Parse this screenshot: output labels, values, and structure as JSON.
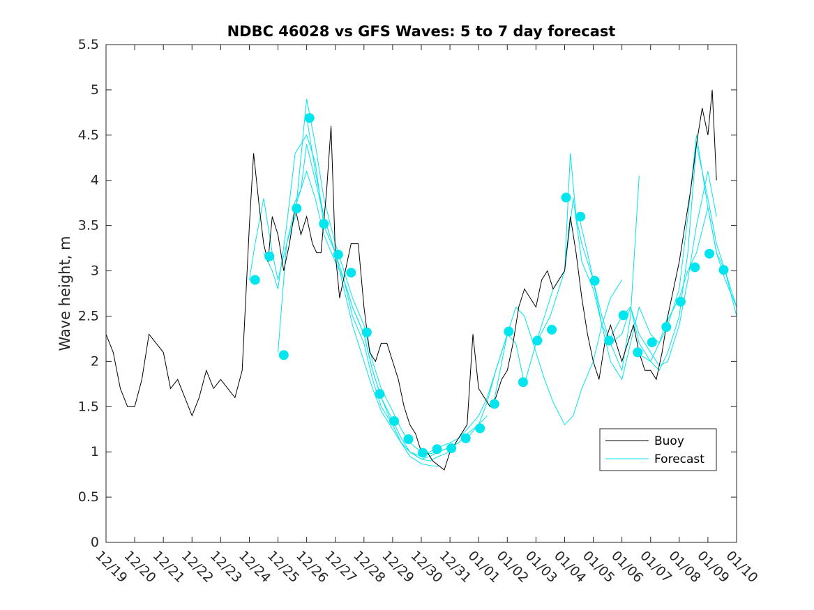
{
  "colors": {
    "buoy": "#000000",
    "forecast": "#00e5ee",
    "axis": "#262626",
    "background": "#ffffff"
  },
  "chart_data": {
    "type": "line",
    "title": "NDBC 46028 vs GFS Waves: 5 to 7 day forecast",
    "xlabel": "",
    "ylabel": "Wave height, m",
    "xlim": [
      0,
      22
    ],
    "ylim": [
      0,
      5.5
    ],
    "yticks": [
      0,
      0.5,
      1,
      1.5,
      2,
      2.5,
      3,
      3.5,
      4,
      4.5,
      5,
      5.5
    ],
    "ytick_labels": [
      "0",
      "0.5",
      "1",
      "1.5",
      "2",
      "2.5",
      "3",
      "3.5",
      "4",
      "4.5",
      "5",
      "5.5"
    ],
    "xticks": [
      0,
      1,
      2,
      3,
      4,
      5,
      6,
      7,
      8,
      9,
      10,
      11,
      12,
      13,
      14,
      15,
      16,
      17,
      18,
      19,
      20,
      21,
      22
    ],
    "xtick_labels": [
      "12/19",
      "12/20",
      "12/21",
      "12/22",
      "12/23",
      "12/24",
      "12/25",
      "12/26",
      "12/27",
      "12/28",
      "12/29",
      "12/30",
      "12/31",
      "01/01",
      "01/02",
      "01/03",
      "01/04",
      "01/05",
      "01/06",
      "01/07",
      "01/08",
      "01/09",
      "01/10"
    ],
    "legend": {
      "placement": "bottom-right",
      "entries": [
        "Buoy",
        "Forecast"
      ]
    },
    "series": [
      {
        "name": "Buoy",
        "color": "#000000",
        "note": "x in days since 12/19 00:00",
        "x": [
          0,
          0.25,
          0.5,
          0.75,
          1.0,
          1.25,
          1.5,
          1.75,
          2.0,
          2.25,
          2.5,
          2.75,
          3.0,
          3.25,
          3.5,
          3.75,
          4.0,
          4.25,
          4.5,
          4.75,
          5.0,
          5.15,
          5.35,
          5.5,
          5.65,
          5.8,
          6.0,
          6.2,
          6.4,
          6.6,
          6.8,
          7.0,
          7.2,
          7.35,
          7.5,
          7.7,
          7.85,
          8.0,
          8.15,
          8.35,
          8.55,
          8.8,
          9.0,
          9.2,
          9.4,
          9.6,
          9.8,
          10.0,
          10.2,
          10.4,
          10.6,
          10.8,
          11.0,
          11.2,
          11.4,
          11.6,
          11.8,
          12.0,
          12.2,
          12.4,
          12.6,
          12.8,
          13.0,
          13.2,
          13.4,
          13.6,
          13.8,
          14.0,
          14.2,
          14.4,
          14.6,
          14.8,
          15.0,
          15.2,
          15.4,
          15.6,
          15.8,
          16.0,
          16.2,
          16.4,
          16.6,
          16.8,
          17.0,
          17.2,
          17.4,
          17.6,
          17.8,
          18.0,
          18.2,
          18.4,
          18.6,
          18.8,
          19.0,
          19.2,
          19.4,
          19.6,
          19.8,
          20.0,
          20.2,
          20.4,
          20.6,
          20.8,
          21.0,
          21.15,
          21.3
        ],
        "y": [
          2.3,
          2.1,
          1.7,
          1.5,
          1.5,
          1.8,
          2.3,
          2.2,
          2.1,
          1.7,
          1.8,
          1.6,
          1.4,
          1.6,
          1.9,
          1.7,
          1.8,
          1.7,
          1.6,
          1.9,
          3.5,
          4.3,
          3.7,
          3.3,
          3.1,
          3.6,
          3.4,
          3.0,
          3.3,
          3.7,
          3.4,
          3.6,
          3.3,
          3.2,
          3.2,
          3.9,
          4.6,
          3.2,
          2.7,
          3.0,
          3.3,
          3.3,
          2.6,
          2.1,
          2.0,
          2.2,
          2.2,
          2.0,
          1.8,
          1.5,
          1.3,
          1.2,
          1.0,
          1.0,
          0.9,
          0.85,
          0.8,
          1.0,
          1.1,
          1.2,
          1.3,
          2.3,
          1.7,
          1.6,
          1.5,
          1.6,
          1.8,
          1.9,
          2.2,
          2.6,
          2.8,
          2.7,
          2.6,
          2.9,
          3.0,
          2.8,
          2.9,
          3.0,
          3.6,
          3.2,
          2.7,
          2.3,
          2.0,
          1.8,
          2.2,
          2.4,
          2.2,
          2.0,
          2.2,
          2.4,
          2.1,
          1.9,
          1.9,
          1.8,
          2.1,
          2.5,
          2.8,
          3.1,
          3.5,
          3.9,
          4.4,
          4.8,
          4.5,
          5.0,
          4.0
        ]
      },
      {
        "name": "Forecast",
        "color": "#00e5ee",
        "runs": [
          {
            "x": [
              5.0,
              5.2,
              5.5,
              5.8,
              6.0,
              6.3,
              6.6,
              7.0,
              7.3,
              7.6,
              8.0,
              8.3,
              8.6,
              9.0,
              9.3,
              9.6,
              10.0,
              10.3,
              10.6,
              11.0,
              11.3,
              11.6
            ],
            "y": [
              2.9,
              3.3,
              3.8,
              3.2,
              2.9,
              3.3,
              3.7,
              4.1,
              3.8,
              3.4,
              3.1,
              2.9,
              2.5,
              2.2,
              1.8,
              1.5,
              1.3,
              1.1,
              0.95,
              0.87,
              0.85,
              0.84
            ]
          },
          {
            "x": [
              5.5,
              5.8,
              6.0,
              6.3,
              6.6,
              7.0,
              7.3,
              7.6,
              8.0,
              8.3,
              8.6,
              9.0,
              9.3,
              9.6,
              10.0,
              10.3,
              10.6,
              11.0,
              11.3,
              11.6,
              12.0
            ],
            "y": [
              3.2,
              3.0,
              2.8,
              3.5,
              4.3,
              4.5,
              4.2,
              3.5,
              3.2,
              2.9,
              2.6,
              2.3,
              1.9,
              1.6,
              1.35,
              1.15,
              1.0,
              0.92,
              0.9,
              0.95,
              1.0
            ]
          },
          {
            "x": [
              6.0,
              6.3,
              6.6,
              7.0,
              7.3,
              7.6,
              8.0,
              8.3,
              8.6,
              9.0,
              9.3,
              9.6,
              10.0,
              10.3,
              10.6,
              11.0,
              11.3,
              11.6,
              12.0,
              12.3,
              12.6
            ],
            "y": [
              2.1,
              3.3,
              3.6,
              4.9,
              4.4,
              3.8,
              3.3,
              3.0,
              2.7,
              2.4,
              2.0,
              1.7,
              1.45,
              1.25,
              1.1,
              1.0,
              0.98,
              1.0,
              1.05,
              1.1,
              1.2
            ]
          },
          {
            "x": [
              6.5,
              6.8,
              7.0,
              7.3,
              7.6,
              8.0,
              8.3,
              8.6,
              9.0,
              9.3,
              9.6,
              10.0,
              10.3,
              10.6,
              11.0,
              11.3,
              11.6,
              12.0,
              12.3,
              12.6,
              13.0,
              13.3
            ],
            "y": [
              3.7,
              3.9,
              4.4,
              4.0,
              3.6,
              3.2,
              2.9,
              2.6,
              2.3,
              1.9,
              1.6,
              1.3,
              1.1,
              1.0,
              0.92,
              0.95,
              1.0,
              1.05,
              1.1,
              1.2,
              1.3,
              1.4
            ]
          },
          {
            "x": [
              7.0,
              7.3,
              7.6,
              8.0,
              8.3,
              8.6,
              9.0,
              9.3,
              9.6,
              10.0,
              10.3,
              10.6,
              11.0,
              11.3,
              11.6,
              12.0,
              12.3,
              12.6,
              13.0,
              13.3,
              13.6,
              14.0
            ],
            "y": [
              4.7,
              4.1,
              3.6,
              3.2,
              2.8,
              2.4,
              2.0,
              1.7,
              1.45,
              1.25,
              1.1,
              1.0,
              0.95,
              1.0,
              1.05,
              1.1,
              1.15,
              1.25,
              1.4,
              1.6,
              1.9,
              2.3
            ]
          },
          {
            "x": [
              12.6,
              13.0,
              13.3,
              13.6,
              14.0,
              14.3,
              14.6,
              15.0,
              15.3,
              15.6,
              16.0,
              16.3,
              16.6,
              17.0,
              17.3,
              17.6,
              18.0
            ],
            "y": [
              1.15,
              1.3,
              1.55,
              1.9,
              2.3,
              2.6,
              2.5,
              2.1,
              1.8,
              1.55,
              1.3,
              1.4,
              1.7,
              2.0,
              2.4,
              2.7,
              2.9
            ]
          },
          {
            "x": [
              13.5,
              14.0,
              14.3,
              14.6,
              15.0,
              15.3,
              15.6,
              16.0,
              16.2,
              16.4,
              16.6,
              17.0,
              17.3,
              17.6,
              18.0,
              18.3,
              18.6
            ],
            "y": [
              1.5,
              2.3,
              2.2,
              1.75,
              2.2,
              2.5,
              2.8,
              3.0,
              4.3,
              3.6,
              3.3,
              2.9,
              2.5,
              2.2,
              1.9,
              2.5,
              4.05
            ]
          },
          {
            "x": [
              15.0,
              15.5,
              16.0,
              16.3,
              16.6,
              17.0,
              17.3,
              17.6,
              18.0,
              18.3,
              18.6,
              19.0,
              19.3,
              19.6
            ],
            "y": [
              2.2,
              2.5,
              3.0,
              3.8,
              3.1,
              2.8,
              2.4,
              2.0,
              1.8,
              2.2,
              2.6,
              2.3,
              2.2,
              2.5
            ]
          },
          {
            "x": [
              16.5,
              16.8,
              17.0,
              17.3,
              17.6,
              18.0,
              18.3,
              18.6,
              19.0,
              19.3,
              19.6,
              20.0,
              20.3,
              20.6,
              21.0,
              21.3
            ],
            "y": [
              3.6,
              3.2,
              2.9,
              2.4,
              2.2,
              2.3,
              2.6,
              2.3,
              2.1,
              1.95,
              2.0,
              2.4,
              2.9,
              3.5,
              4.1,
              3.6
            ]
          },
          {
            "x": [
              17.5,
              18.0,
              18.3,
              18.6,
              19.0,
              19.3,
              19.6,
              20.0,
              20.3,
              20.6,
              21.0,
              21.3,
              21.6,
              22.0
            ],
            "y": [
              2.2,
              2.5,
              2.6,
              2.2,
              2.0,
              1.9,
              2.1,
              2.5,
              3.2,
              4.4,
              3.8,
              3.3,
              3.0,
              2.6
            ]
          },
          {
            "x": [
              18.5,
              19.0,
              19.3,
              19.6,
              20.0,
              20.3,
              20.6,
              21.0,
              21.3,
              21.6,
              22.0
            ],
            "y": [
              2.1,
              2.0,
              2.2,
              2.4,
              2.8,
              3.6,
              4.5,
              3.7,
              3.2,
              2.9,
              2.6
            ]
          },
          {
            "x": [
              19.5,
              20.0,
              20.3,
              20.6,
              21.0,
              21.3,
              21.6,
              22.0
            ],
            "y": [
              2.4,
              2.7,
              3.0,
              3.2,
              3.7,
              3.2,
              3.0,
              2.5
            ]
          }
        ],
        "markers": {
          "x": [
            5.2,
            5.7,
            6.2,
            6.65,
            7.1,
            7.6,
            8.1,
            8.55,
            9.1,
            9.55,
            10.05,
            10.55,
            11.05,
            11.55,
            12.05,
            12.55,
            13.05,
            13.55,
            14.05,
            14.55,
            15.05,
            15.55,
            16.05,
            16.55,
            17.05,
            17.55,
            18.05,
            18.55,
            19.05,
            19.55,
            20.05,
            20.55,
            21.05,
            21.55
          ],
          "y": [
            2.9,
            3.16,
            2.07,
            3.69,
            4.69,
            3.52,
            3.18,
            2.98,
            2.32,
            1.64,
            1.34,
            1.14,
            0.99,
            1.03,
            1.04,
            1.15,
            1.26,
            1.53,
            2.33,
            1.77,
            2.23,
            2.35,
            3.81,
            3.6,
            2.89,
            2.23,
            2.51,
            2.1,
            2.21,
            2.38,
            2.66,
            3.04,
            3.19,
            3.01
          ]
        }
      }
    ]
  }
}
